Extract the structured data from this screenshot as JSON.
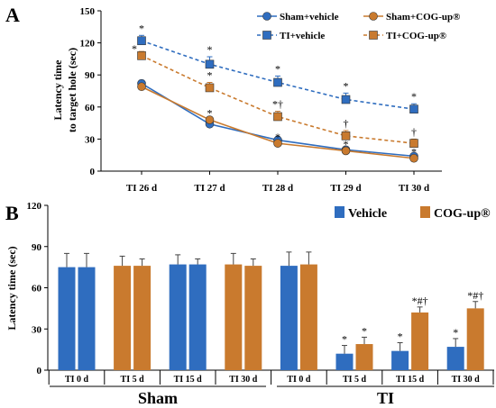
{
  "colors": {
    "blue": "#2f6dbf",
    "orange": "#c97a2e",
    "black": "#000000"
  },
  "chart_data": [
    {
      "panel": "A",
      "type": "line",
      "ylabel": [
        "Latency time",
        "to target hole (sec)"
      ],
      "yticks": [
        "0",
        "30",
        "60",
        "90",
        "120",
        "150"
      ],
      "ylim": [
        0,
        150
      ],
      "categories": [
        "TI 26 d",
        "TI 27 d",
        "TI 28 d",
        "TI 29 d",
        "TI 30 d"
      ],
      "series": [
        {
          "name": "Sham+vehicle",
          "values": [
            82,
            44,
            29,
            20,
            14
          ],
          "errors": [
            3,
            2,
            3,
            2,
            2
          ],
          "color": "blue",
          "marker": "circle",
          "dashed": false
        },
        {
          "name": "Sham+COG-up®",
          "values": [
            79,
            48,
            26,
            19,
            12
          ],
          "errors": [
            2,
            2,
            2,
            2,
            2
          ],
          "color": "orange",
          "marker": "circle",
          "dashed": false
        },
        {
          "name": "TI+vehicle",
          "values": [
            122,
            100,
            83,
            67,
            58
          ],
          "errors": [
            5,
            7,
            6,
            6,
            5
          ],
          "color": "blue",
          "marker": "square",
          "dashed": true
        },
        {
          "name": "TI+COG-up®",
          "values": [
            108,
            78,
            51,
            33,
            26
          ],
          "errors": [
            4,
            5,
            5,
            5,
            4
          ],
          "color": "orange",
          "marker": "square",
          "dashed": true
        }
      ],
      "annotations": [
        {
          "series": 2,
          "index": 0,
          "text": "*",
          "color": "black"
        },
        {
          "series": 3,
          "index": 0,
          "text": "*",
          "color": "black",
          "side": "left"
        },
        {
          "series": 2,
          "index": 1,
          "text": "*",
          "color": "black"
        },
        {
          "series": 3,
          "index": 1,
          "text": "*",
          "color": "black"
        },
        {
          "series": 2,
          "index": 2,
          "text": "*",
          "color": "black"
        },
        {
          "series": 3,
          "index": 2,
          "text": "*†",
          "color": "black"
        },
        {
          "series": 2,
          "index": 3,
          "text": "*",
          "color": "black"
        },
        {
          "series": 3,
          "index": 3,
          "text": "†",
          "color": "black"
        },
        {
          "series": 2,
          "index": 4,
          "text": "*",
          "color": "black"
        },
        {
          "series": 3,
          "index": 4,
          "text": "†",
          "color": "black"
        },
        {
          "series": 1,
          "index": 1,
          "text": "*",
          "color": "orange"
        },
        {
          "series": 1,
          "index": 2,
          "text": "*",
          "color": "orange"
        },
        {
          "series": 1,
          "index": 3,
          "text": "*",
          "color": "orange"
        },
        {
          "series": 1,
          "index": 4,
          "text": "*",
          "color": "orange"
        }
      ],
      "legend_placement": "top-right"
    },
    {
      "panel": "B",
      "type": "bar",
      "ylabel": "Latency time (sec)",
      "yticks": [
        "0",
        "30",
        "60",
        "90",
        "120"
      ],
      "ylim": [
        0,
        120
      ],
      "series_names": [
        "Vehicle",
        "COG-up®"
      ],
      "series_colors": [
        "blue",
        "orange"
      ],
      "groups": [
        {
          "label": "TI 0 d",
          "section": "Sham",
          "bars": [
            {
              "value": 75,
              "error": 10,
              "series": 0
            },
            {
              "value": 75,
              "error": 10,
              "series": 0
            }
          ]
        },
        {
          "label": "TI 5 d",
          "section": "Sham",
          "bars": [
            {
              "value": 76,
              "error": 7,
              "series": 1
            },
            {
              "value": 76,
              "error": 5,
              "series": 1
            }
          ]
        },
        {
          "label": "TI 15 d",
          "section": "Sham",
          "bars": [
            {
              "value": 77,
              "error": 7,
              "series": 0
            },
            {
              "value": 77,
              "error": 4,
              "series": 0
            }
          ]
        },
        {
          "label": "TI 30 d",
          "section": "Sham",
          "bars": [
            {
              "value": 77,
              "error": 8,
              "series": 1
            },
            {
              "value": 76,
              "error": 5,
              "series": 1
            }
          ]
        },
        {
          "label": "TI 0 d",
          "section": "TI",
          "bars": [
            {
              "value": 76,
              "error": 10,
              "series": 0
            },
            {
              "value": 77,
              "error": 9,
              "series": 1
            }
          ]
        },
        {
          "label": "TI 5 d",
          "section": "TI",
          "bars": [
            {
              "value": 12,
              "error": 6,
              "series": 0,
              "mark": "*"
            },
            {
              "value": 19,
              "error": 5,
              "series": 1,
              "mark": "*"
            }
          ]
        },
        {
          "label": "TI 15 d",
          "section": "TI",
          "bars": [
            {
              "value": 14,
              "error": 6,
              "series": 0,
              "mark": "*"
            },
            {
              "value": 42,
              "error": 4,
              "series": 1,
              "mark": "*#†"
            }
          ]
        },
        {
          "label": "TI 30 d",
          "section": "TI",
          "bars": [
            {
              "value": 17,
              "error": 6,
              "series": 0,
              "mark": "*"
            },
            {
              "value": 45,
              "error": 5,
              "series": 1,
              "mark": "*#†"
            }
          ]
        }
      ],
      "sections": [
        "Sham",
        "TI"
      ],
      "legend_placement": "top-right"
    }
  ]
}
